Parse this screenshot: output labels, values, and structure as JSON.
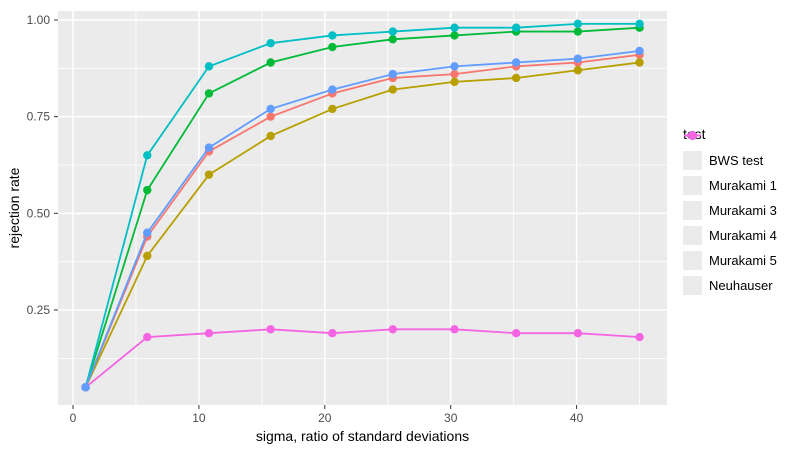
{
  "chart_data": {
    "type": "line",
    "title": "",
    "xlabel": "sigma, ratio of standard deviations",
    "ylabel": "rejection rate",
    "legend_title": "test",
    "legend_position": "right",
    "grid": true,
    "panel_bg": "#EBEBEB",
    "grid_color": "#FFFFFF",
    "tick_label_color": "#4D4D4D",
    "tick_mark_color": "#333333",
    "xlim": [
      -1.2,
      47.2
    ],
    "ylim": [
      0.0,
      1.03
    ],
    "x_ticks": [
      0,
      10,
      20,
      30,
      40
    ],
    "x_tick_labels": [
      "0",
      "10",
      "20",
      "30",
      "40"
    ],
    "x_minor_ticks": [
      5,
      15,
      25,
      35,
      45
    ],
    "y_ticks": [
      0.25,
      0.5,
      0.75,
      1.0
    ],
    "y_tick_labels": [
      "0.25",
      "0.50",
      "0.75",
      "1.00"
    ],
    "y_minor_ticks": [
      0.125,
      0.375,
      0.625,
      0.875
    ],
    "x": [
      1,
      5.9,
      10.8,
      15.7,
      20.6,
      25.4,
      30.3,
      35.2,
      40.1,
      45
    ],
    "series": [
      {
        "name": "BWS test",
        "color": "#F8766D",
        "values": [
          0.05,
          0.44,
          0.66,
          0.75,
          0.81,
          0.85,
          0.86,
          0.88,
          0.89,
          0.91
        ]
      },
      {
        "name": "Murakami 1",
        "color": "#B79F00",
        "values": [
          0.05,
          0.39,
          0.6,
          0.7,
          0.77,
          0.82,
          0.84,
          0.85,
          0.87,
          0.89
        ]
      },
      {
        "name": "Murakami 3",
        "color": "#00BA38",
        "values": [
          0.05,
          0.56,
          0.81,
          0.89,
          0.93,
          0.95,
          0.96,
          0.97,
          0.97,
          0.98
        ]
      },
      {
        "name": "Murakami 4",
        "color": "#00BFC4",
        "values": [
          0.05,
          0.65,
          0.88,
          0.94,
          0.96,
          0.97,
          0.98,
          0.98,
          0.99,
          0.99
        ]
      },
      {
        "name": "Murakami 5",
        "color": "#619CFF",
        "values": [
          0.05,
          0.45,
          0.67,
          0.77,
          0.82,
          0.86,
          0.88,
          0.89,
          0.9,
          0.92
        ]
      },
      {
        "name": "Neuhauser",
        "color": "#F564E3",
        "values": [
          0.05,
          0.18,
          0.19,
          0.2,
          0.19,
          0.2,
          0.2,
          0.19,
          0.19,
          0.18
        ]
      }
    ],
    "z_order": [
      0,
      1,
      2,
      3,
      5,
      4
    ]
  }
}
